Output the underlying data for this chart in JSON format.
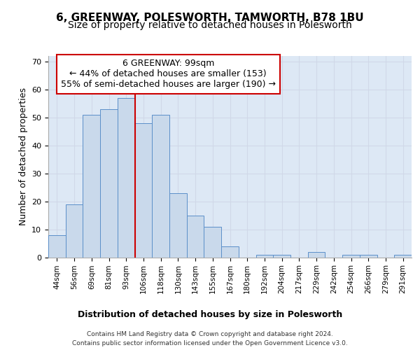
{
  "title": "6, GREENWAY, POLESWORTH, TAMWORTH, B78 1BU",
  "subtitle": "Size of property relative to detached houses in Polesworth",
  "xlabel": "Distribution of detached houses by size in Polesworth",
  "ylabel": "Number of detached properties",
  "bar_labels": [
    "44sqm",
    "56sqm",
    "69sqm",
    "81sqm",
    "93sqm",
    "106sqm",
    "118sqm",
    "130sqm",
    "143sqm",
    "155sqm",
    "167sqm",
    "180sqm",
    "192sqm",
    "204sqm",
    "217sqm",
    "229sqm",
    "242sqm",
    "254sqm",
    "266sqm",
    "279sqm",
    "291sqm"
  ],
  "bar_values": [
    8,
    19,
    51,
    53,
    57,
    48,
    51,
    23,
    15,
    11,
    4,
    0,
    1,
    1,
    0,
    2,
    0,
    1,
    1,
    0,
    1
  ],
  "bar_color": "#c9d9eb",
  "bar_edge_color": "#5b8fc9",
  "vline_x": 4.5,
  "vline_color": "#cc0000",
  "annotation_text": "6 GREENWAY: 99sqm\n← 44% of detached houses are smaller (153)\n55% of semi-detached houses are larger (190) →",
  "annotation_box_color": "#ffffff",
  "annotation_box_edge": "#cc0000",
  "ylim": [
    0,
    72
  ],
  "yticks": [
    0,
    10,
    20,
    30,
    40,
    50,
    60,
    70
  ],
  "grid_color": "#d0d8e8",
  "plot_bg_color": "#dde8f5",
  "fig_bg_color": "#ffffff",
  "footer_text": "Contains HM Land Registry data © Crown copyright and database right 2024.\nContains public sector information licensed under the Open Government Licence v3.0.",
  "title_fontsize": 11,
  "subtitle_fontsize": 10,
  "xlabel_fontsize": 9,
  "ylabel_fontsize": 9,
  "tick_fontsize": 8,
  "annotation_fontsize": 9
}
